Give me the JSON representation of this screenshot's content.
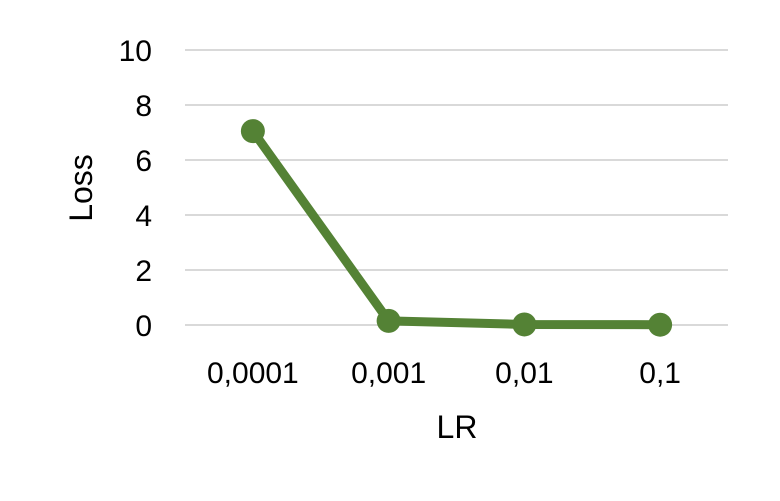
{
  "chart_data": {
    "type": "line",
    "title": "",
    "xlabel": "LR",
    "ylabel": "Loss",
    "categories": [
      "0,0001",
      "0,001",
      "0,01",
      "0,1"
    ],
    "series": [
      {
        "values": [
          7.05,
          0.15,
          0.02,
          0.01
        ],
        "color": "#548235"
      }
    ],
    "ylim": [
      0,
      10
    ],
    "yticks": [
      0,
      2,
      4,
      6,
      8,
      10
    ],
    "ytick_labels": [
      "0",
      "2",
      "4",
      "6",
      "8",
      "10"
    ],
    "grid": true,
    "grid_color": "#d9d9d9",
    "legend": "none"
  }
}
